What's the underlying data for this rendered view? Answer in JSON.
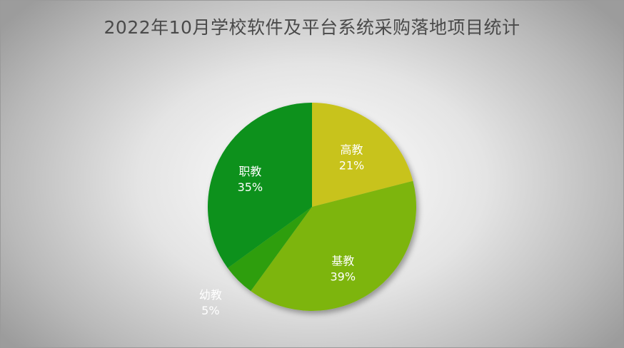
{
  "chart_data": {
    "type": "pie",
    "title": "2022年10月学校软件及平台系统采购落地项目统计",
    "slices": [
      {
        "label": "高教",
        "value": 21,
        "display": "21%",
        "color": "#c8c31a"
      },
      {
        "label": "基教",
        "value": 39,
        "display": "39%",
        "color": "#7db50f"
      },
      {
        "label": "幼教",
        "value": 5,
        "display": "5%",
        "color": "#2f9e0a"
      },
      {
        "label": "职教",
        "value": 35,
        "display": "35%",
        "color": "#07911a"
      }
    ],
    "start_angle_deg": 0,
    "direction": "clockwise",
    "legend": "none",
    "label_color": "#ffffff"
  }
}
